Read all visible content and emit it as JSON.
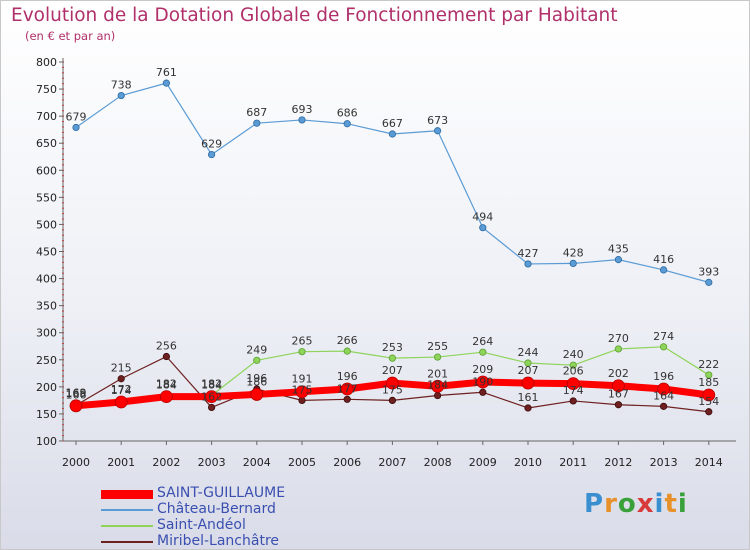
{
  "header": {
    "title": "Evolution de la Dotation Globale de Fonctionnement par Habitant",
    "subtitle": "(en € et par an)"
  },
  "logo": {
    "text": "Proxiti",
    "colors": [
      "#3a8fd0",
      "#e8902a",
      "#3aa03a",
      "#d83a3a",
      "#3a8fd0",
      "#e8902a",
      "#3aa03a"
    ]
  },
  "chart_data": {
    "type": "line",
    "title": "Evolution de la Dotation Globale de Fonctionnement par Habitant",
    "subtitle": "(en € et par an)",
    "xlabel": "",
    "ylabel": "",
    "ylim": [
      100,
      800
    ],
    "yticks": [
      100,
      150,
      200,
      250,
      300,
      350,
      400,
      450,
      500,
      550,
      600,
      650,
      700,
      750,
      800
    ],
    "grid": false,
    "legend_position": "bottom-left",
    "x": [
      "2000",
      "2001",
      "2002",
      "2003",
      "2004",
      "2005",
      "2006",
      "2007",
      "2008",
      "2009",
      "2010",
      "2011",
      "2012",
      "2013",
      "2014"
    ],
    "series": [
      {
        "name": "Château-Bernard",
        "color": "#5b9bd5",
        "values": [
          679,
          738,
          761,
          629,
          687,
          693,
          686,
          667,
          673,
          494,
          427,
          428,
          435,
          416,
          393
        ]
      },
      {
        "name": "Saint-Andéol",
        "color": "#8ed45a",
        "values": [
          169,
          174,
          184,
          184,
          249,
          265,
          266,
          253,
          255,
          264,
          244,
          240,
          270,
          274,
          222
        ]
      },
      {
        "name": "Miribel-Lanchâtre",
        "color": "#6e2020",
        "values": [
          166,
          215,
          256,
          162,
          196,
          175,
          177,
          175,
          184,
          190,
          161,
          174,
          167,
          164,
          154
        ]
      },
      {
        "name": "SAINT-GUILLAUME",
        "color": "#ff0000",
        "values": [
          165,
          172,
          182,
          182,
          186,
          191,
          196,
          207,
          201,
          209,
          207,
          206,
          202,
          196,
          185
        ]
      }
    ]
  }
}
